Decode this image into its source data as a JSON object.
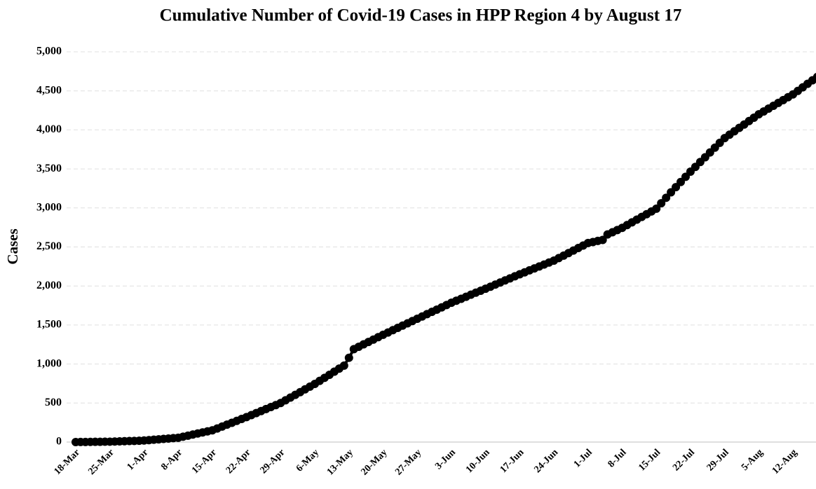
{
  "chart_data": {
    "type": "line",
    "title": "Cumulative Number of  Covid-19 Cases in HPP Region 4 by August 17",
    "y_label": "Cases",
    "categories": [
      "18-Mar",
      null,
      null,
      null,
      null,
      null,
      null,
      "25-Mar",
      null,
      null,
      null,
      null,
      null,
      null,
      "1-Apr",
      null,
      null,
      null,
      null,
      null,
      null,
      "8-Apr",
      null,
      null,
      null,
      null,
      null,
      null,
      "15-Apr",
      null,
      null,
      null,
      null,
      null,
      null,
      "22-Apr",
      null,
      null,
      null,
      null,
      null,
      null,
      "29-Apr",
      null,
      null,
      null,
      null,
      null,
      null,
      "6-May",
      null,
      null,
      null,
      null,
      null,
      null,
      "13-May",
      null,
      null,
      null,
      null,
      null,
      null,
      "20-May",
      null,
      null,
      null,
      null,
      null,
      null,
      "27-May",
      null,
      null,
      null,
      null,
      null,
      null,
      "3-Jun",
      null,
      null,
      null,
      null,
      null,
      null,
      "10-Jun",
      null,
      null,
      null,
      null,
      null,
      null,
      "17-Jun",
      null,
      null,
      null,
      null,
      null,
      null,
      "24-Jun",
      null,
      null,
      null,
      null,
      null,
      null,
      "1-Jul",
      null,
      null,
      null,
      null,
      null,
      null,
      "8-Jul",
      null,
      null,
      null,
      null,
      null,
      null,
      "15-Jul",
      null,
      null,
      null,
      null,
      null,
      null,
      "22-Jul",
      null,
      null,
      null,
      null,
      null,
      null,
      "29-Jul",
      null,
      null,
      null,
      null,
      null,
      null,
      "5-Aug",
      null,
      null,
      null,
      null,
      null,
      null,
      "12-Aug",
      null,
      null,
      null,
      null,
      null
    ],
    "series": [
      {
        "name": "Cases",
        "color": "#000000",
        "values": [
          0,
          1,
          1,
          2,
          3,
          3,
          4,
          5,
          7,
          9,
          11,
          13,
          15,
          17,
          20,
          25,
          30,
          35,
          40,
          45,
          50,
          55,
          69,
          82,
          96,
          110,
          123,
          137,
          150,
          174,
          199,
          223,
          247,
          271,
          296,
          320,
          346,
          371,
          397,
          423,
          449,
          474,
          500,
          535,
          570,
          605,
          640,
          675,
          710,
          745,
          784,
          823,
          862,
          902,
          941,
          980,
          1080,
          1190,
          1221,
          1252,
          1283,
          1313,
          1344,
          1375,
          1404,
          1434,
          1463,
          1492,
          1521,
          1551,
          1580,
          1609,
          1639,
          1668,
          1697,
          1726,
          1756,
          1785,
          1811,
          1836,
          1862,
          1888,
          1914,
          1939,
          1965,
          1991,
          2018,
          2044,
          2071,
          2097,
          2124,
          2150,
          2175,
          2200,
          2225,
          2250,
          2275,
          2300,
          2325,
          2357,
          2389,
          2421,
          2454,
          2486,
          2518,
          2550,
          2563,
          2577,
          2590,
          2660,
          2688,
          2717,
          2745,
          2780,
          2815,
          2850,
          2885,
          2920,
          2955,
          2990,
          3060,
          3130,
          3200,
          3266,
          3333,
          3399,
          3465,
          3526,
          3588,
          3649,
          3711,
          3772,
          3834,
          3895,
          3939,
          3982,
          4026,
          4069,
          4113,
          4156,
          4200,
          4236,
          4273,
          4309,
          4346,
          4382,
          4419,
          4455,
          4500,
          4545,
          4590,
          4635,
          4680
        ]
      }
    ],
    "ylim": [
      0,
      5000
    ],
    "yticks": [
      0,
      500,
      {
        "value": 1000,
        "label": "1,000"
      },
      {
        "value": 1500,
        "label": "1,500"
      },
      {
        "value": 2000,
        "label": "2,000"
      },
      {
        "value": 2500,
        "label": "2,500"
      },
      {
        "value": 3000,
        "label": "3,000"
      },
      {
        "value": 3500,
        "label": "3,500"
      },
      {
        "value": 4000,
        "label": "4,000"
      },
      {
        "value": 4500,
        "label": "4,500"
      },
      {
        "value": 5000,
        "label": "5,000"
      }
    ],
    "grid": true
  }
}
